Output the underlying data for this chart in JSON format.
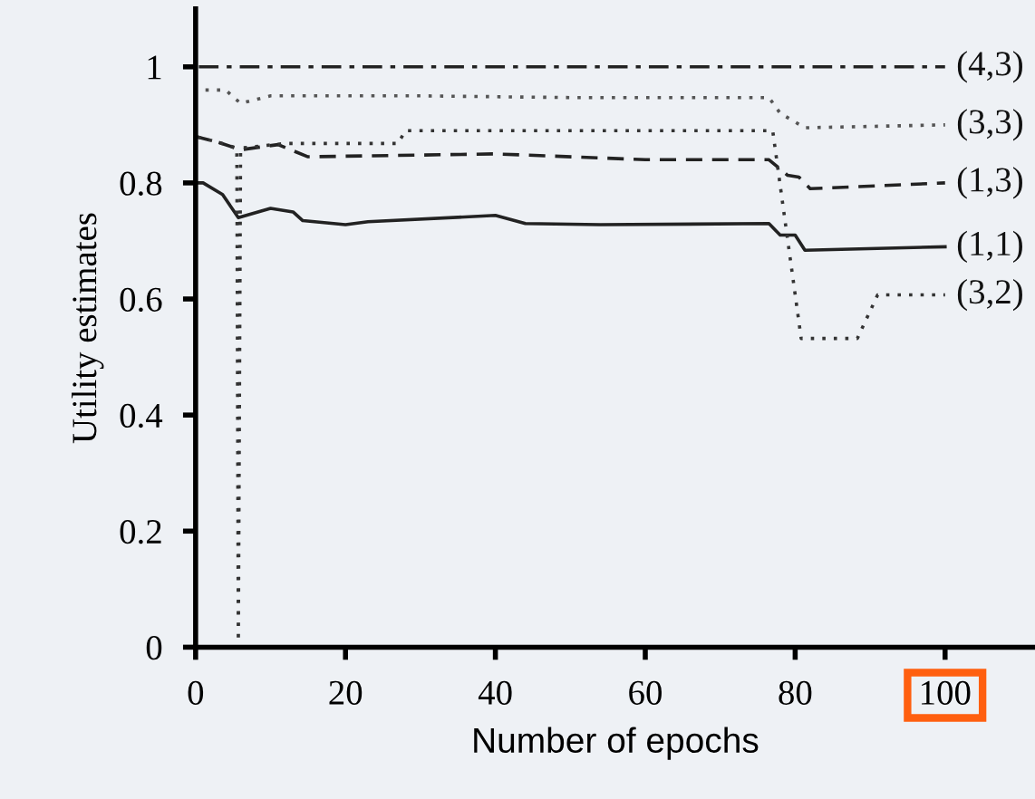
{
  "chart_data": {
    "type": "line",
    "xlabel": "Number of epochs",
    "ylabel": "Utility estimates",
    "xlim": [
      0,
      112
    ],
    "xticks": [
      0,
      20,
      40,
      60,
      80,
      100
    ],
    "ylim": [
      0,
      1.1
    ],
    "yticks": [
      0,
      0.2,
      0.4,
      0.6,
      0.8,
      1
    ],
    "grid": false,
    "legend": false,
    "marker": "none",
    "series": [
      {
        "name": "(4,3)",
        "color": "#222222",
        "line_style": "dashdot",
        "x": [
          0,
          100
        ],
        "values": [
          1,
          1
        ]
      },
      {
        "name": "(3,3)",
        "color": "#555555",
        "line_style": "dotted",
        "x": [
          0,
          4,
          6,
          10,
          30,
          50,
          76.5,
          78,
          81.3,
          100
        ],
        "values": [
          0.96,
          0.96,
          0.937,
          0.95,
          0.95,
          0.947,
          0.947,
          0.92,
          0.895,
          0.9
        ]
      },
      {
        "name": "(1,3)",
        "color": "#222222",
        "line_style": "dashed",
        "x": [
          0,
          3,
          6,
          11,
          15,
          40,
          60,
          76.5,
          79,
          80.5,
          82,
          100
        ],
        "values": [
          0.88,
          0.87,
          0.857,
          0.866,
          0.845,
          0.85,
          0.84,
          0.84,
          0.813,
          0.81,
          0.79,
          0.8
        ]
      },
      {
        "name": "(1,1)",
        "color": "#222222",
        "line_style": "solid",
        "x": [
          0,
          1,
          3.6,
          5.7,
          10,
          13,
          14.3,
          20,
          23,
          40,
          44,
          54,
          76.5,
          78,
          80,
          81.3,
          100
        ],
        "values": [
          0.8,
          0.8,
          0.78,
          0.74,
          0.756,
          0.75,
          0.735,
          0.728,
          0.733,
          0.744,
          0.73,
          0.728,
          0.73,
          0.71,
          0.71,
          0.684,
          0.69
        ]
      },
      {
        "name": "(3,2)",
        "color": "#333333",
        "line_style": "dotted",
        "x": [
          0,
          3,
          5.5,
          5.7,
          6,
          12,
          27,
          28,
          77,
          80.8,
          88.3,
          91,
          100
        ],
        "values": [
          0.88,
          0.87,
          0.86,
          0,
          0.86,
          0.868,
          0.868,
          0.89,
          0.89,
          0.532,
          0.532,
          0.607,
          0.607
        ]
      }
    ]
  }
}
